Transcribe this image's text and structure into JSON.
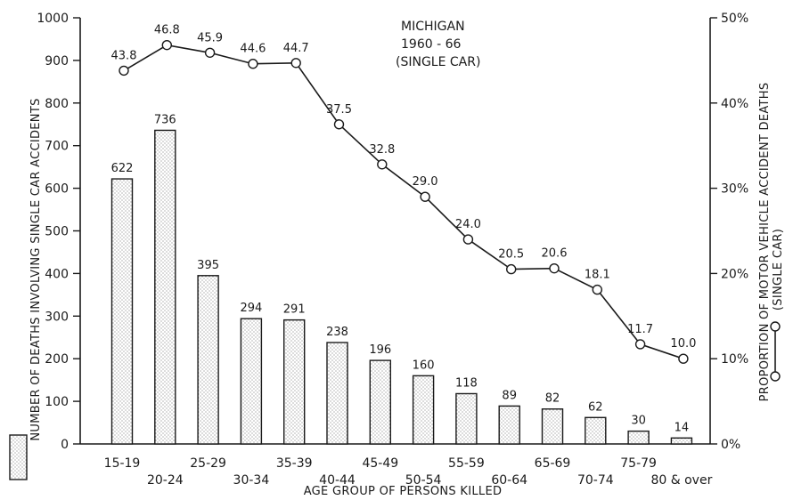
{
  "chart_data": {
    "type": "bar",
    "title": [
      "MICHIGAN",
      "1960 - 66",
      "(SINGLE CAR)"
    ],
    "xlabel": "AGE GROUP OF PERSONS KILLED",
    "ylabel": "NUMBER OF DEATHS INVOLVING SINGLE CAR ACCIDENTS",
    "y2label": [
      "PROPORTION OF MOTOR VEHICLE ACCIDENT DEATHS",
      "(SINGLE CAR)"
    ],
    "categories": [
      "15-19",
      "20-24",
      "25-29",
      "30-34",
      "35-39",
      "40-44",
      "45-49",
      "50-54",
      "55-59",
      "60-64",
      "65-69",
      "70-74",
      "75-79",
      "80 & over"
    ],
    "ylim": [
      0,
      1000
    ],
    "yticks": [
      "0",
      "100",
      "200",
      "300",
      "400",
      "500",
      "600",
      "700",
      "800",
      "900",
      "1000"
    ],
    "y2lim": [
      0,
      50
    ],
    "y2ticks": [
      "0%",
      "10%",
      "20%",
      "30%",
      "40%",
      "50%"
    ],
    "series": [
      {
        "type": "bar",
        "values": [
          622,
          736,
          395,
          294,
          291,
          238,
          196,
          160,
          118,
          89,
          82,
          62,
          30,
          14
        ],
        "labels": [
          "622",
          "736",
          "395",
          "294",
          "291",
          "238",
          "196",
          "160",
          "118",
          "89",
          "82",
          "62",
          "30",
          "14"
        ]
      },
      {
        "type": "line",
        "axis": "right",
        "values": [
          43.8,
          46.8,
          45.9,
          44.6,
          44.7,
          37.5,
          32.8,
          29.0,
          24.0,
          20.5,
          20.6,
          18.1,
          11.7,
          10.0
        ],
        "labels": [
          "43.8",
          "46.8",
          "45.9",
          "44.6",
          "44.7",
          "37.5",
          "32.8",
          "29.0",
          "24.0",
          "20.5",
          "20.6",
          "18.1",
          "11.7",
          "10.0"
        ]
      }
    ],
    "legend": "bottom-left and right edge symbols",
    "grid": false
  }
}
